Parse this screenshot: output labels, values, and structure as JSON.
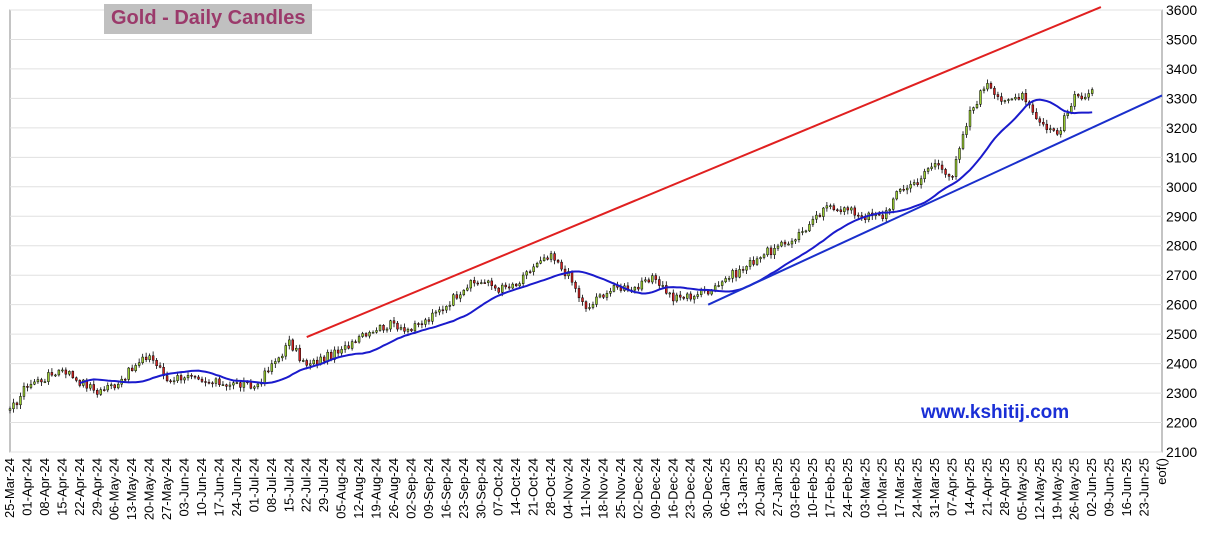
{
  "chart_data": {
    "type": "candlestick",
    "title": "Gold - Daily Candles",
    "watermark": "www.kshitij.com",
    "ylim": [
      2100,
      3600
    ],
    "y_ticks": [
      2100,
      2200,
      2300,
      2400,
      2500,
      2600,
      2700,
      2800,
      2900,
      3000,
      3100,
      3200,
      3300,
      3400,
      3500,
      3600
    ],
    "y_axis_side": "right",
    "grid": "horizontal",
    "x_ticks": [
      "25-Mar-24",
      "01-Apr-24",
      "08-Apr-24",
      "15-Apr-24",
      "22-Apr-24",
      "29-Apr-24",
      "06-May-24",
      "13-May-24",
      "20-May-24",
      "27-May-24",
      "03-Jun-24",
      "10-Jun-24",
      "17-Jun-24",
      "24-Jun-24",
      "01-Jul-24",
      "08-Jul-24",
      "15-Jul-24",
      "22-Jul-24",
      "29-Jul-24",
      "05-Aug-24",
      "12-Aug-24",
      "19-Aug-24",
      "26-Aug-24",
      "02-Sep-24",
      "09-Sep-24",
      "16-Sep-24",
      "23-Sep-24",
      "30-Sep-24",
      "07-Oct-24",
      "14-Oct-24",
      "21-Oct-24",
      "28-Oct-24",
      "04-Nov-24",
      "11-Nov-24",
      "18-Nov-24",
      "25-Nov-24",
      "02-Dec-24",
      "09-Dec-24",
      "16-Dec-24",
      "23-Dec-24",
      "30-Dec-24",
      "06-Jan-25",
      "13-Jan-25",
      "20-Jan-25",
      "27-Jan-25",
      "03-Feb-25",
      "10-Feb-25",
      "17-Feb-25",
      "24-Feb-25",
      "03-Mar-25",
      "10-Mar-25",
      "17-Mar-25",
      "24-Mar-25",
      "31-Mar-25",
      "07-Apr-25",
      "14-Apr-25",
      "21-Apr-25",
      "28-Apr-25",
      "05-May-25",
      "12-May-25",
      "19-May-25",
      "26-May-25",
      "02-Jun-25",
      "09-Jun-25",
      "16-Jun-25",
      "23-Jun-25",
      "eof()"
    ],
    "weekly_closes": [
      2235,
      2330,
      2350,
      2385,
      2340,
      2305,
      2330,
      2380,
      2430,
      2345,
      2360,
      2330,
      2335,
      2330,
      2320,
      2390,
      2470,
      2390,
      2420,
      2440,
      2500,
      2520,
      2535,
      2515,
      2550,
      2600,
      2660,
      2680,
      2655,
      2660,
      2730,
      2760,
      2700,
      2580,
      2640,
      2660,
      2660,
      2690,
      2620,
      2630,
      2650,
      2690,
      2720,
      2770,
      2790,
      2830,
      2880,
      2940,
      2920,
      2900,
      2900,
      2990,
      3020,
      3080,
      3040,
      3250,
      3360,
      3280,
      3320,
      3220,
      3180,
      3300,
      3330
    ],
    "series": [
      {
        "name": "",
        "type": "moving-average",
        "color": "#1a1acc"
      },
      {
        "name": "",
        "type": "trendline-upper",
        "color": "#e02020",
        "points": [
          [
            "22-Jul-24",
            2490
          ],
          [
            "Jun-25",
            3610
          ]
        ]
      },
      {
        "name": "",
        "type": "trendline-lower",
        "color": "#1a2fcc",
        "points": [
          [
            "30-Dec-24",
            2600
          ],
          [
            "eof()",
            3310
          ]
        ]
      }
    ],
    "colors": {
      "up": "#9acd32",
      "down": "#d42020",
      "wick": "#000000"
    }
  }
}
